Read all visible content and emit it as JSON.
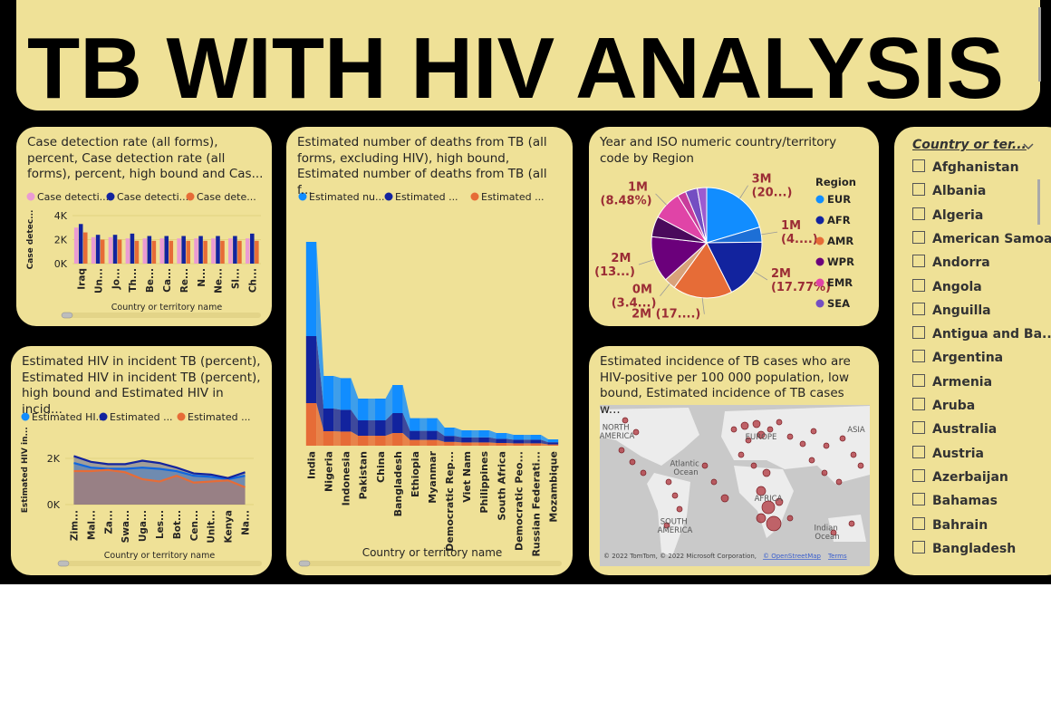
{
  "header": {
    "title": "TB WITH HIV ANALYSIS"
  },
  "chart_data": [
    {
      "type": "bar",
      "title": "Case detection rate (all forms), percent, Case detection rate (all forms), percent, high bound and Cas...",
      "categories": [
        "Iraq",
        "Un...",
        "Jo...",
        "Th...",
        "Be...",
        "Ca...",
        "Re...",
        "N...",
        "Ne...",
        "Sl...",
        "Ch..."
      ],
      "series": [
        {
          "name": "Case detecti...",
          "color": "#ea9bd3",
          "values": [
            3000,
            2200,
            2200,
            2100,
            2100,
            2100,
            2100,
            2100,
            2100,
            2100,
            2100
          ]
        },
        {
          "name": "Case detecti...",
          "color": "#12239e",
          "values": [
            3300,
            2400,
            2400,
            2500,
            2300,
            2300,
            2300,
            2300,
            2300,
            2300,
            2500
          ]
        },
        {
          "name": "Case dete...",
          "color": "#e66c37",
          "values": [
            2600,
            2000,
            2000,
            1900,
            1900,
            1900,
            1900,
            1900,
            1900,
            1900,
            1900
          ]
        }
      ],
      "y_label": "Case detec...",
      "x_label": "Country or territory name",
      "ylim": [
        0,
        4000
      ],
      "yticks": [
        {
          "value": 0,
          "label": "0K"
        },
        {
          "value": 2000,
          "label": "2K"
        },
        {
          "value": 4000,
          "label": "4K"
        }
      ]
    },
    {
      "type": "area",
      "title": "Estimated HIV in incident TB (percent), Estimated HIV in incident TB (percent), high bound and Estimated HIV in incid...",
      "categories": [
        "Zim...",
        "Mal...",
        "Za...",
        "Swa...",
        "Uga...",
        "Les...",
        "Bot...",
        "Cen...",
        "Unit...",
        "Kenya",
        "Na..."
      ],
      "series": [
        {
          "name": "Estimated HI...",
          "color": "#118dff",
          "values": [
            1800,
            1600,
            1550,
            1550,
            1600,
            1550,
            1450,
            1250,
            1200,
            1100,
            1250
          ]
        },
        {
          "name": "Estimated ...",
          "color": "#12239e",
          "values": [
            2100,
            1850,
            1750,
            1750,
            1900,
            1800,
            1600,
            1350,
            1300,
            1150,
            1400
          ]
        },
        {
          "name": "Estimated ...",
          "color": "#e66c37",
          "values": [
            1450,
            1450,
            1500,
            1400,
            1100,
            1000,
            1250,
            950,
            1000,
            1050,
            750
          ]
        }
      ],
      "y_label": "Estimated HIV in...",
      "x_label": "Country or territory name",
      "ylim": [
        0,
        3000
      ],
      "yticks": [
        {
          "value": 0,
          "label": "0K"
        },
        {
          "value": 2000,
          "label": "2K"
        }
      ]
    },
    {
      "type": "stacked_area",
      "title": "Estimated number of deaths from TB (all forms, excluding HIV), high bound, Estimated number of deaths from TB (all f...",
      "categories": [
        "India",
        "Nigeria",
        "Indonesia",
        "Pakistan",
        "China",
        "Bangladesh",
        "Ethiopia",
        "Myanmar",
        "Democratic Rep...",
        "Viet Nam",
        "Philippines",
        "South Africa",
        "Democratic Peo...",
        "Russian Federati...",
        "Mozambique"
      ],
      "series": [
        {
          "name": "Estimated nu...",
          "color": "#118dff",
          "values": [
            520000,
            180000,
            175000,
            120000,
            120000,
            155000,
            70000,
            70000,
            46000,
            39000,
            39000,
            32000,
            27000,
            27000,
            16000
          ]
        },
        {
          "name": "Estimated ...",
          "color": "#12239e",
          "values": [
            370000,
            125000,
            120000,
            85000,
            85000,
            110000,
            50000,
            50000,
            33000,
            28000,
            28000,
            23000,
            20000,
            20000,
            12000
          ]
        },
        {
          "name": "Estimated ...",
          "color": "#e66c37",
          "values": [
            235000,
            80000,
            78000,
            55000,
            55000,
            70000,
            32000,
            32000,
            21000,
            18000,
            18000,
            15000,
            13000,
            13000,
            7000
          ]
        }
      ],
      "x_label": "Country or territory name"
    },
    {
      "type": "pie",
      "title": "Year and ISO numeric country/territory code by Region",
      "legend_title": "Region",
      "categories": [
        "EUR",
        null,
        "AFR",
        "AMR",
        null,
        "WPR",
        null,
        "EMR",
        null,
        "SEA",
        null
      ],
      "colors": [
        "#118dff",
        "#1d6fd6",
        "#12239e",
        "#e66c37",
        "#d9a27a",
        "#6b007b",
        "#4a0a5c",
        "#e044a7",
        "#c83c9b",
        "#744ec2",
        "#9c5bd0"
      ],
      "values": [
        20.4,
        4.4,
        17.77,
        17.4,
        3.4,
        13.4,
        6,
        8.48,
        2.5,
        3.5,
        2.75
      ],
      "value_labels": [
        "3M (20...)",
        "1M (4....)",
        "2M (17.77%)",
        "2M (17....)",
        "0M (3.4...)",
        "2M (13...)",
        null,
        "1M (8.48%)",
        null,
        null,
        null
      ]
    },
    {
      "type": "map",
      "title": "Estimated incidence of TB cases who are HIV-positive per 100 000 population, low bound, Estimated incidence of TB cases w...",
      "labels": [
        "NORTH AMERICA",
        "ASIA",
        "EUROPE",
        "Atlantic Ocean",
        "AFRICA",
        "SOUTH AMERICA",
        "Indian Ocean"
      ],
      "attribution": "© 2022 TomTom, © 2022 Microsoft Corporation,",
      "attribution_link": "© OpenStreetMap",
      "terms": "Terms"
    }
  ],
  "slicer": {
    "title": "Country or ter...",
    "items": [
      "Afghanistan",
      "Albania",
      "Algeria",
      "American Samoa",
      "Andorra",
      "Angola",
      "Anguilla",
      "Antigua and Ba...",
      "Argentina",
      "Armenia",
      "Aruba",
      "Australia",
      "Austria",
      "Azerbaijan",
      "Bahamas",
      "Bahrain",
      "Bangladesh"
    ]
  }
}
